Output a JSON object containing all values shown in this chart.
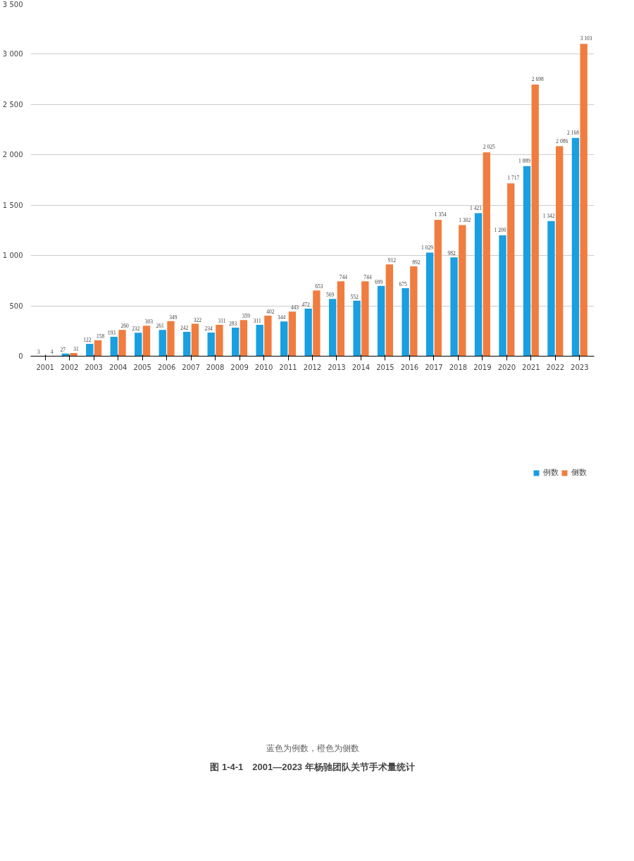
{
  "chart_data": {
    "type": "bar",
    "title": "图 1-4-1　2001—2023 年杨驰团队关节手术量统计",
    "subtitle": "蓝色为例数，橙色为侧数",
    "categories": [
      "2001",
      "2002",
      "2003",
      "2004",
      "2005",
      "2006",
      "2007",
      "2008",
      "2009",
      "2010",
      "2011",
      "2012",
      "2013",
      "2014",
      "2015",
      "2016",
      "2017",
      "2018",
      "2019",
      "2020",
      "2021",
      "2022",
      "2023"
    ],
    "series": [
      {
        "name": "例数",
        "color": "#1a9fe0",
        "values": [
          3,
          27,
          122,
          193,
          232,
          261,
          242,
          234,
          283,
          311,
          344,
          472,
          569,
          552,
          699,
          675,
          1029,
          982,
          1421,
          1200,
          1889,
          1342,
          2168
        ],
        "value_labels": [
          "3",
          "27",
          "122",
          "193",
          "232",
          "261",
          "242",
          "234",
          "283",
          "311",
          "344",
          "472",
          "569",
          "552",
          "699",
          "675",
          "1 029",
          "982",
          "1 421",
          "1 200",
          "1 889",
          "1 342",
          "2 168"
        ]
      },
      {
        "name": "侧数",
        "color": "#f07d3f",
        "values": [
          4,
          31,
          158,
          260,
          303,
          349,
          322,
          311,
          359,
          402,
          443,
          653,
          744,
          744,
          912,
          892,
          1354,
          1302,
          2025,
          1717,
          2698,
          2086,
          3103
        ],
        "value_labels": [
          "4",
          "31",
          "158",
          "260",
          "303",
          "349",
          "322",
          "311",
          "359",
          "402",
          "443",
          "653",
          "744",
          "744",
          "912",
          "892",
          "1 354",
          "1 302",
          "2 025",
          "1 717",
          "2 698",
          "2 086",
          "3 103"
        ]
      }
    ],
    "ylim": [
      0,
      3500
    ],
    "yticks": [
      0,
      500,
      {
        "value": 1000,
        "label": "1 000"
      },
      {
        "value": 1500,
        "label": "1 500"
      },
      {
        "value": 2000,
        "label": "2 000"
      },
      {
        "value": 2500,
        "label": "2 500"
      },
      {
        "value": 3000,
        "label": "3 000"
      },
      {
        "value": 3500,
        "label": "3 500"
      }
    ],
    "grid": "y",
    "legend": "bottom"
  }
}
